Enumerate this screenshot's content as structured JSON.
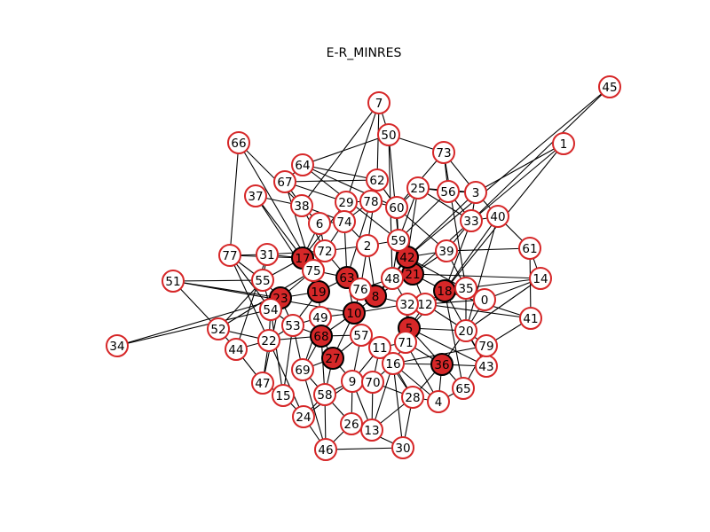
{
  "title": "E-R_MINRES",
  "colors": {
    "node_outline": "#d62728",
    "selected_fill": "#d62728",
    "unselected_fill": "#ffffff",
    "edge": "#000000",
    "label": "#000000"
  },
  "nodes": [
    {
      "id": "0",
      "selected": false
    },
    {
      "id": "1",
      "selected": false
    },
    {
      "id": "2",
      "selected": false
    },
    {
      "id": "3",
      "selected": false
    },
    {
      "id": "4",
      "selected": false
    },
    {
      "id": "5",
      "selected": true
    },
    {
      "id": "6",
      "selected": false
    },
    {
      "id": "7",
      "selected": false
    },
    {
      "id": "8",
      "selected": true
    },
    {
      "id": "9",
      "selected": false
    },
    {
      "id": "10",
      "selected": true
    },
    {
      "id": "11",
      "selected": false
    },
    {
      "id": "12",
      "selected": false
    },
    {
      "id": "13",
      "selected": false
    },
    {
      "id": "14",
      "selected": false
    },
    {
      "id": "15",
      "selected": false
    },
    {
      "id": "16",
      "selected": false
    },
    {
      "id": "17",
      "selected": true
    },
    {
      "id": "18",
      "selected": true
    },
    {
      "id": "19",
      "selected": true
    },
    {
      "id": "20",
      "selected": false
    },
    {
      "id": "21",
      "selected": true
    },
    {
      "id": "22",
      "selected": false
    },
    {
      "id": "23",
      "selected": true
    },
    {
      "id": "24",
      "selected": false
    },
    {
      "id": "25",
      "selected": false
    },
    {
      "id": "26",
      "selected": false
    },
    {
      "id": "27",
      "selected": true
    },
    {
      "id": "28",
      "selected": false
    },
    {
      "id": "29",
      "selected": false
    },
    {
      "id": "30",
      "selected": false
    },
    {
      "id": "31",
      "selected": false
    },
    {
      "id": "32",
      "selected": false
    },
    {
      "id": "33",
      "selected": false
    },
    {
      "id": "34",
      "selected": false
    },
    {
      "id": "35",
      "selected": false
    },
    {
      "id": "36",
      "selected": true
    },
    {
      "id": "37",
      "selected": false
    },
    {
      "id": "38",
      "selected": false
    },
    {
      "id": "39",
      "selected": false
    },
    {
      "id": "40",
      "selected": false
    },
    {
      "id": "41",
      "selected": false
    },
    {
      "id": "42",
      "selected": true
    },
    {
      "id": "43",
      "selected": false
    },
    {
      "id": "44",
      "selected": false
    },
    {
      "id": "45",
      "selected": false
    },
    {
      "id": "46",
      "selected": false
    },
    {
      "id": "47",
      "selected": false
    },
    {
      "id": "48",
      "selected": false
    },
    {
      "id": "49",
      "selected": false
    },
    {
      "id": "50",
      "selected": false
    },
    {
      "id": "51",
      "selected": false
    },
    {
      "id": "52",
      "selected": false
    },
    {
      "id": "53",
      "selected": false
    },
    {
      "id": "54",
      "selected": false
    },
    {
      "id": "55",
      "selected": false
    },
    {
      "id": "56",
      "selected": false
    },
    {
      "id": "57",
      "selected": false
    },
    {
      "id": "58",
      "selected": false
    },
    {
      "id": "59",
      "selected": false
    },
    {
      "id": "60",
      "selected": false
    },
    {
      "id": "61",
      "selected": false
    },
    {
      "id": "62",
      "selected": false
    },
    {
      "id": "63",
      "selected": true
    },
    {
      "id": "64",
      "selected": false
    },
    {
      "id": "65",
      "selected": false
    },
    {
      "id": "66",
      "selected": false
    },
    {
      "id": "67",
      "selected": false
    },
    {
      "id": "68",
      "selected": true
    },
    {
      "id": "69",
      "selected": false
    },
    {
      "id": "70",
      "selected": false
    },
    {
      "id": "71",
      "selected": false
    },
    {
      "id": "72",
      "selected": false
    },
    {
      "id": "73",
      "selected": false
    },
    {
      "id": "74",
      "selected": false
    },
    {
      "id": "75",
      "selected": false
    },
    {
      "id": "76",
      "selected": false
    },
    {
      "id": "77",
      "selected": false
    },
    {
      "id": "78",
      "selected": false
    },
    {
      "id": "79",
      "selected": false
    }
  ],
  "edges": [
    [
      "45",
      "42"
    ],
    [
      "45",
      "33"
    ],
    [
      "1",
      "3"
    ],
    [
      "1",
      "18"
    ],
    [
      "1",
      "33"
    ],
    [
      "34",
      "23"
    ],
    [
      "34",
      "54"
    ],
    [
      "51",
      "23"
    ],
    [
      "51",
      "10"
    ],
    [
      "51",
      "55"
    ],
    [
      "51",
      "52"
    ],
    [
      "66",
      "77"
    ],
    [
      "66",
      "75"
    ],
    [
      "66",
      "6"
    ],
    [
      "7",
      "62"
    ],
    [
      "7",
      "29"
    ],
    [
      "7",
      "38"
    ],
    [
      "7",
      "50"
    ],
    [
      "50",
      "59"
    ],
    [
      "50",
      "73"
    ],
    [
      "50",
      "64"
    ],
    [
      "50",
      "48"
    ],
    [
      "73",
      "3"
    ],
    [
      "73",
      "60"
    ],
    [
      "73",
      "56"
    ],
    [
      "73",
      "35"
    ],
    [
      "3",
      "33"
    ],
    [
      "3",
      "40"
    ],
    [
      "3",
      "42"
    ],
    [
      "3",
      "25"
    ],
    [
      "3",
      "56"
    ],
    [
      "56",
      "25"
    ],
    [
      "56",
      "59"
    ],
    [
      "56",
      "33"
    ],
    [
      "40",
      "33"
    ],
    [
      "40",
      "61"
    ],
    [
      "40",
      "20"
    ],
    [
      "40",
      "18"
    ],
    [
      "61",
      "14"
    ],
    [
      "61",
      "41"
    ],
    [
      "61",
      "39"
    ],
    [
      "14",
      "35"
    ],
    [
      "14",
      "0"
    ],
    [
      "14",
      "20"
    ],
    [
      "14",
      "21"
    ],
    [
      "41",
      "12"
    ],
    [
      "41",
      "79"
    ],
    [
      "41",
      "18"
    ],
    [
      "0",
      "35"
    ],
    [
      "0",
      "20"
    ],
    [
      "0",
      "12"
    ],
    [
      "0",
      "42"
    ],
    [
      "79",
      "43"
    ],
    [
      "79",
      "65"
    ],
    [
      "79",
      "20"
    ],
    [
      "79",
      "16"
    ],
    [
      "43",
      "20"
    ],
    [
      "43",
      "5"
    ],
    [
      "43",
      "36"
    ],
    [
      "43",
      "18"
    ],
    [
      "65",
      "36"
    ],
    [
      "65",
      "4"
    ],
    [
      "65",
      "18"
    ],
    [
      "4",
      "28"
    ],
    [
      "4",
      "36"
    ],
    [
      "4",
      "71"
    ],
    [
      "4",
      "16"
    ],
    [
      "28",
      "30"
    ],
    [
      "28",
      "11"
    ],
    [
      "28",
      "13"
    ],
    [
      "30",
      "46"
    ],
    [
      "30",
      "16"
    ],
    [
      "30",
      "26"
    ],
    [
      "46",
      "24"
    ],
    [
      "46",
      "58"
    ],
    [
      "46",
      "69"
    ],
    [
      "46",
      "26"
    ],
    [
      "24",
      "15"
    ],
    [
      "24",
      "9"
    ],
    [
      "24",
      "58"
    ],
    [
      "24",
      "77"
    ],
    [
      "15",
      "47"
    ],
    [
      "15",
      "54"
    ],
    [
      "15",
      "53"
    ],
    [
      "47",
      "44"
    ],
    [
      "47",
      "22"
    ],
    [
      "47",
      "23"
    ],
    [
      "44",
      "52"
    ],
    [
      "44",
      "31"
    ],
    [
      "44",
      "22"
    ],
    [
      "52",
      "22"
    ],
    [
      "52",
      "55"
    ],
    [
      "52",
      "75"
    ],
    [
      "22",
      "54"
    ],
    [
      "22",
      "53"
    ],
    [
      "22",
      "68"
    ],
    [
      "77",
      "31"
    ],
    [
      "77",
      "54"
    ],
    [
      "77",
      "17"
    ],
    [
      "77",
      "55"
    ],
    [
      "31",
      "17"
    ],
    [
      "31",
      "55"
    ],
    [
      "31",
      "72"
    ],
    [
      "37",
      "38"
    ],
    [
      "37",
      "17"
    ],
    [
      "37",
      "19"
    ],
    [
      "38",
      "67"
    ],
    [
      "38",
      "72"
    ],
    [
      "38",
      "74"
    ],
    [
      "38",
      "6"
    ],
    [
      "67",
      "64"
    ],
    [
      "67",
      "29"
    ],
    [
      "67",
      "62"
    ],
    [
      "67",
      "19"
    ],
    [
      "64",
      "62"
    ],
    [
      "64",
      "60"
    ],
    [
      "64",
      "59"
    ],
    [
      "62",
      "78"
    ],
    [
      "62",
      "60"
    ],
    [
      "62",
      "2"
    ],
    [
      "29",
      "78"
    ],
    [
      "29",
      "74"
    ],
    [
      "29",
      "17"
    ],
    [
      "78",
      "60"
    ],
    [
      "78",
      "74"
    ],
    [
      "78",
      "63"
    ],
    [
      "60",
      "25"
    ],
    [
      "60",
      "59"
    ],
    [
      "60",
      "39"
    ],
    [
      "25",
      "59"
    ],
    [
      "25",
      "42"
    ],
    [
      "25",
      "33"
    ],
    [
      "33",
      "39"
    ],
    [
      "33",
      "18"
    ],
    [
      "33",
      "21"
    ],
    [
      "39",
      "42"
    ],
    [
      "39",
      "21"
    ],
    [
      "39",
      "35"
    ],
    [
      "59",
      "2"
    ],
    [
      "59",
      "42"
    ],
    [
      "59",
      "48"
    ],
    [
      "2",
      "74"
    ],
    [
      "2",
      "72"
    ],
    [
      "2",
      "76"
    ],
    [
      "2",
      "8"
    ],
    [
      "6",
      "74"
    ],
    [
      "6",
      "72"
    ],
    [
      "6",
      "17"
    ],
    [
      "74",
      "72"
    ],
    [
      "74",
      "63"
    ],
    [
      "72",
      "17"
    ],
    [
      "72",
      "75"
    ],
    [
      "72",
      "63"
    ],
    [
      "17",
      "75"
    ],
    [
      "17",
      "19"
    ],
    [
      "17",
      "55"
    ],
    [
      "55",
      "23"
    ],
    [
      "55",
      "54"
    ],
    [
      "54",
      "23"
    ],
    [
      "54",
      "53"
    ],
    [
      "23",
      "75"
    ],
    [
      "23",
      "19"
    ],
    [
      "23",
      "53"
    ],
    [
      "75",
      "19"
    ],
    [
      "75",
      "63"
    ],
    [
      "19",
      "63"
    ],
    [
      "19",
      "49"
    ],
    [
      "19",
      "53"
    ],
    [
      "63",
      "76"
    ],
    [
      "63",
      "8"
    ],
    [
      "63",
      "10"
    ],
    [
      "76",
      "8"
    ],
    [
      "76",
      "48"
    ],
    [
      "76",
      "10"
    ],
    [
      "8",
      "48"
    ],
    [
      "8",
      "42"
    ],
    [
      "8",
      "21"
    ],
    [
      "8",
      "32"
    ],
    [
      "8",
      "10"
    ],
    [
      "48",
      "42"
    ],
    [
      "48",
      "21"
    ],
    [
      "48",
      "32"
    ],
    [
      "42",
      "21"
    ],
    [
      "21",
      "18"
    ],
    [
      "21",
      "12"
    ],
    [
      "18",
      "35"
    ],
    [
      "18",
      "12"
    ],
    [
      "18",
      "5"
    ],
    [
      "35",
      "12"
    ],
    [
      "35",
      "20"
    ],
    [
      "12",
      "32"
    ],
    [
      "12",
      "5"
    ],
    [
      "12",
      "20"
    ],
    [
      "32",
      "5"
    ],
    [
      "32",
      "71"
    ],
    [
      "32",
      "10"
    ],
    [
      "5",
      "71"
    ],
    [
      "5",
      "36"
    ],
    [
      "5",
      "20"
    ],
    [
      "71",
      "11"
    ],
    [
      "71",
      "16"
    ],
    [
      "71",
      "36"
    ],
    [
      "36",
      "16"
    ],
    [
      "36",
      "28"
    ],
    [
      "36",
      "20"
    ],
    [
      "16",
      "11"
    ],
    [
      "16",
      "70"
    ],
    [
      "16",
      "28"
    ],
    [
      "11",
      "57"
    ],
    [
      "11",
      "70"
    ],
    [
      "11",
      "9"
    ],
    [
      "57",
      "10"
    ],
    [
      "57",
      "68"
    ],
    [
      "57",
      "27"
    ],
    [
      "57",
      "9"
    ],
    [
      "10",
      "49"
    ],
    [
      "10",
      "68"
    ],
    [
      "10",
      "27"
    ],
    [
      "49",
      "53"
    ],
    [
      "49",
      "68"
    ],
    [
      "49",
      "69"
    ],
    [
      "53",
      "68"
    ],
    [
      "53",
      "69"
    ],
    [
      "68",
      "27"
    ],
    [
      "68",
      "69"
    ],
    [
      "68",
      "58"
    ],
    [
      "27",
      "69"
    ],
    [
      "27",
      "58"
    ],
    [
      "27",
      "9"
    ],
    [
      "69",
      "58"
    ],
    [
      "58",
      "9"
    ],
    [
      "58",
      "26"
    ],
    [
      "9",
      "70"
    ],
    [
      "9",
      "26"
    ],
    [
      "9",
      "13"
    ],
    [
      "70",
      "13"
    ],
    [
      "70",
      "28"
    ],
    [
      "26",
      "13"
    ],
    [
      "13",
      "16"
    ]
  ]
}
